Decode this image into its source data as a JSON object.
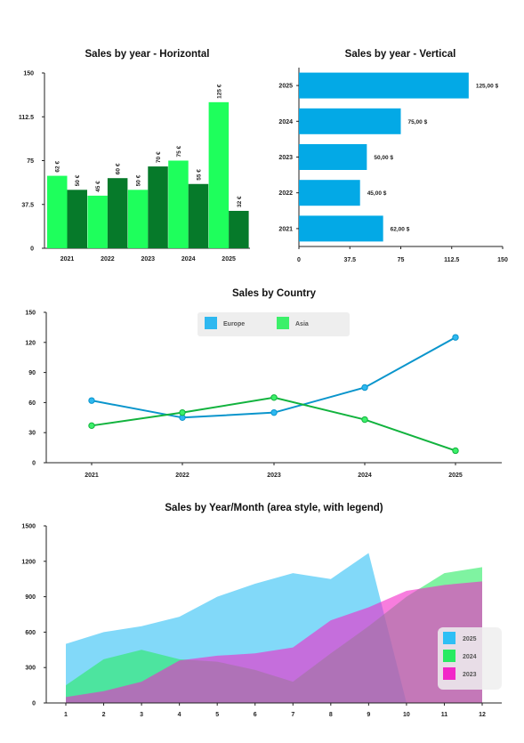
{
  "chart_data": [
    {
      "id": "c1",
      "type": "bar",
      "orientation": "vertical-columns",
      "title": "Sales by year - Horizontal",
      "categories": [
        "2021",
        "2022",
        "2023",
        "2024",
        "2025"
      ],
      "ylim": [
        0,
        150
      ],
      "yticks": [
        "0",
        "37.5",
        "75",
        "112.5",
        "150"
      ],
      "series": [
        {
          "values": [
            62,
            45,
            50,
            75,
            125
          ],
          "labels": [
            "62 €",
            "45 €",
            "50 €",
            "75 €",
            "125 €"
          ],
          "color": "#1EFF5C"
        },
        {
          "values": [
            50,
            60,
            70,
            55,
            32
          ],
          "labels": [
            "50 €",
            "60 €",
            "70 €",
            "55 €",
            "32 €"
          ],
          "color": "#067A2A"
        }
      ]
    },
    {
      "id": "c2",
      "type": "bar",
      "orientation": "horizontal-bars",
      "title": "Sales by year - Vertical",
      "categories": [
        "2021",
        "2022",
        "2023",
        "2024",
        "2025"
      ],
      "xlim": [
        0,
        150
      ],
      "xticks": [
        "0",
        "37.5",
        "75",
        "112.5",
        "150"
      ],
      "series": [
        {
          "values": [
            62,
            45,
            50,
            75,
            125
          ],
          "labels": [
            "62,00 $",
            "45,00 $",
            "50,00 $",
            "75,00 $",
            "125,00 $"
          ],
          "color": "#03A9E6"
        }
      ]
    },
    {
      "id": "c3",
      "type": "line",
      "title": "Sales by Country",
      "categories": [
        "2021",
        "2022",
        "2023",
        "2024",
        "2025"
      ],
      "ylim": [
        0,
        150
      ],
      "yticks": [
        "0",
        "30",
        "60",
        "90",
        "120",
        "150"
      ],
      "legend": "top-center",
      "series": [
        {
          "name": "Europe",
          "values": [
            62,
            45,
            50,
            75,
            125
          ],
          "color": "#0A95CC",
          "marker": "#2EB8F0"
        },
        {
          "name": "Asia",
          "values": [
            37,
            50,
            65,
            43,
            12
          ],
          "color": "#12B33E",
          "marker": "#3CF06A"
        }
      ]
    },
    {
      "id": "c4",
      "type": "area",
      "title": "Sales by Year/Month (area style, with legend)",
      "x": [
        1,
        2,
        3,
        4,
        5,
        6,
        7,
        8,
        9,
        10,
        11,
        12
      ],
      "xticks": [
        "1",
        "2",
        "3",
        "4",
        "5",
        "6",
        "7",
        "8",
        "9",
        "10",
        "11",
        "12"
      ],
      "ylim": [
        0,
        1500
      ],
      "yticks": [
        "0",
        "300",
        "600",
        "900",
        "1200",
        "1500"
      ],
      "legend": "right-bottom",
      "series": [
        {
          "name": "2025",
          "values": [
            500,
            600,
            650,
            730,
            900,
            1010,
            1100,
            1050,
            1270,
            0,
            null,
            null
          ],
          "color": "#2EBFF5",
          "opacity": 0.6
        },
        {
          "name": "2024",
          "values": [
            150,
            370,
            450,
            370,
            350,
            280,
            180,
            420,
            650,
            900,
            1100,
            1150
          ],
          "color": "#29EB62",
          "opacity": 0.6
        },
        {
          "name": "2023",
          "values": [
            50,
            100,
            180,
            360,
            400,
            420,
            470,
            700,
            810,
            950,
            1000,
            1030
          ],
          "color": "#F227C8",
          "opacity": 0.6
        }
      ]
    }
  ]
}
